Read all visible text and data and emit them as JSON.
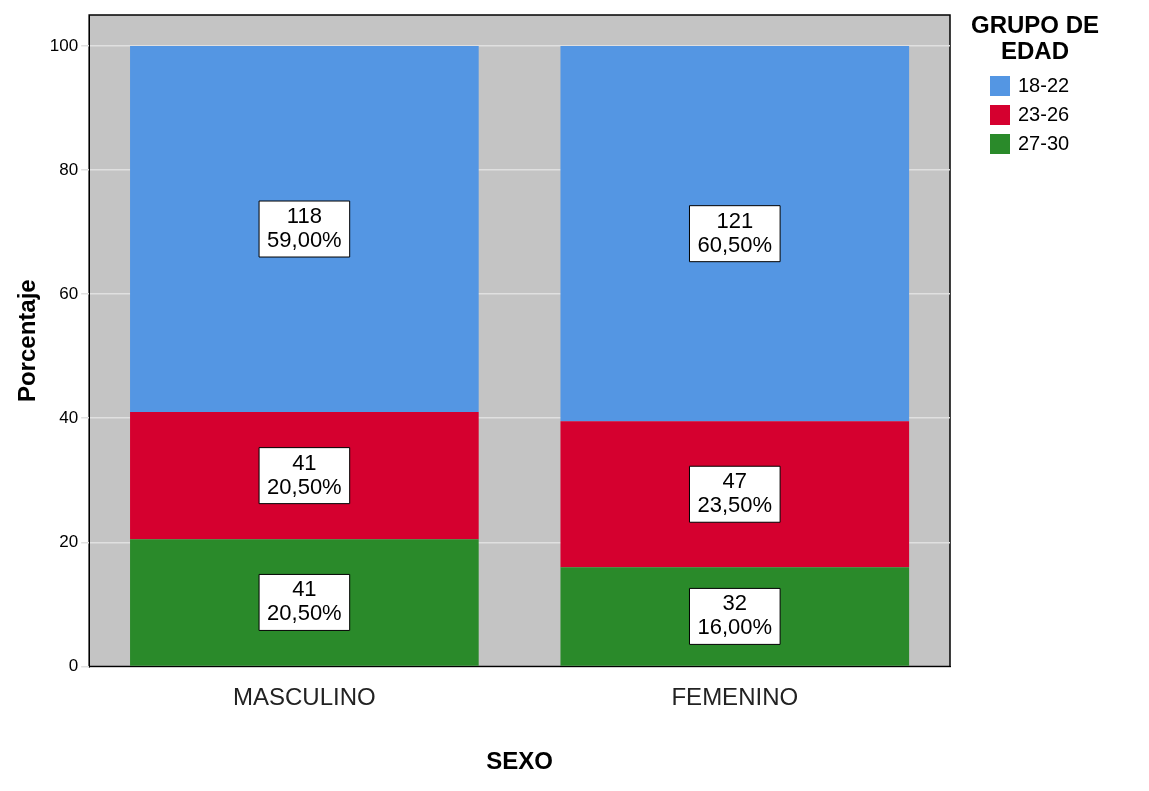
{
  "chart_data": {
    "type": "bar",
    "stacked": true,
    "xlabel": "SEXO",
    "ylabel": "Porcentaje",
    "legend_title": "GRUPO DE EDAD",
    "legend": "top right",
    "grid": "y",
    "categories": [
      "MASCULINO",
      "FEMENINO"
    ],
    "ylim": [
      0,
      105
    ],
    "yticks": [
      0,
      20,
      40,
      60,
      80,
      100
    ],
    "series": [
      {
        "name": "27-30",
        "color": "#2a8a2a",
        "values": [
          20.5,
          16
        ],
        "value_labels": [
          "41\n20,50%",
          "32\n16,00%"
        ]
      },
      {
        "name": "23-26",
        "color": "#d5002f",
        "values": [
          20.5,
          23.5
        ],
        "value_labels": [
          "41\n20,50%",
          "47\n23,50%"
        ]
      },
      {
        "name": "18-22",
        "color": "#5496e3",
        "values": [
          59,
          60.5
        ],
        "value_labels": [
          "118\n59,00%",
          "121\n60,50%"
        ]
      }
    ]
  }
}
